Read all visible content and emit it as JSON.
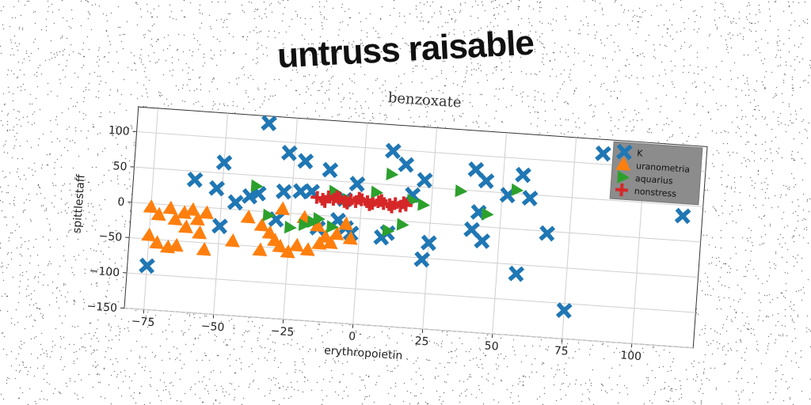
{
  "headline": "untruss raisable",
  "chart_data": {
    "type": "scatter",
    "title": "benzoxate",
    "xlabel": "erythropoietin",
    "ylabel": "spittlestaff",
    "xlim": [
      -82,
      122
    ],
    "ylim": [
      -150,
      135
    ],
    "xticks": [
      -75,
      -50,
      -25,
      0,
      25,
      50,
      75,
      100
    ],
    "yticks": [
      -150,
      -100,
      -50,
      0,
      50,
      100
    ],
    "grid": true,
    "legend_position": "top-right",
    "series": [
      {
        "name": "K",
        "marker": "X",
        "color": "#1f77b4",
        "points": [
          [
            -35,
            125
          ],
          [
            -27,
            85
          ],
          [
            -21,
            75
          ],
          [
            -50,
            65
          ],
          [
            -60,
            38
          ],
          [
            -52,
            28
          ],
          [
            -45,
            10
          ],
          [
            -40,
            20
          ],
          [
            -37,
            25
          ],
          [
            -28,
            30
          ],
          [
            -22,
            32
          ],
          [
            -18,
            33
          ],
          [
            -12,
            65
          ],
          [
            -6,
            25
          ],
          [
            -2,
            48
          ],
          [
            10,
            98
          ],
          [
            15,
            80
          ],
          [
            18,
            38
          ],
          [
            22,
            60
          ],
          [
            40,
            80
          ],
          [
            44,
            65
          ],
          [
            52,
            47
          ],
          [
            57,
            77
          ],
          [
            60,
            45
          ],
          [
            42,
            20
          ],
          [
            40,
            -5
          ],
          [
            44,
            -20
          ],
          [
            67,
            -3
          ],
          [
            115,
            35
          ],
          [
            85,
            115
          ],
          [
            -8,
            -5
          ],
          [
            -5,
            -15
          ],
          [
            -3,
            -22
          ],
          [
            8,
            -25
          ],
          [
            10,
            -18
          ],
          [
            25,
            -28
          ],
          [
            23,
            -52
          ],
          [
            57,
            -63
          ],
          [
            75,
            -110
          ],
          [
            -75,
            -88
          ],
          [
            -50,
            -25
          ],
          [
            -30,
            -10
          ],
          [
            -15,
            -18
          ]
        ]
      },
      {
        "name": "uranometria",
        "marker": "triangle-up",
        "color": "#ff7f0e",
        "points": [
          [
            -75,
            -5
          ],
          [
            -72,
            -15
          ],
          [
            -68,
            -5
          ],
          [
            -66,
            -20
          ],
          [
            -63,
            -10
          ],
          [
            -60,
            -5
          ],
          [
            -58,
            -18
          ],
          [
            -55,
            -8
          ],
          [
            -62,
            -30
          ],
          [
            -57,
            -37
          ],
          [
            -75,
            -45
          ],
          [
            -72,
            -55
          ],
          [
            -68,
            -60
          ],
          [
            -65,
            -57
          ],
          [
            -55,
            -60
          ],
          [
            -45,
            -45
          ],
          [
            -40,
            -10
          ],
          [
            -35,
            -20
          ],
          [
            -32,
            -30
          ],
          [
            -30,
            -40
          ],
          [
            -28,
            -48
          ],
          [
            -35,
            -55
          ],
          [
            -25,
            -55
          ],
          [
            -22,
            -45
          ],
          [
            -18,
            -50
          ],
          [
            -14,
            -40
          ],
          [
            -12,
            -30
          ],
          [
            -10,
            -38
          ],
          [
            -8,
            -25
          ],
          [
            -5,
            -10
          ],
          [
            -3,
            -30
          ],
          [
            -28,
            5
          ],
          [
            -20,
            -5
          ],
          [
            -15,
            -15
          ]
        ]
      },
      {
        "name": "aquarius",
        "marker": "triangle-right",
        "color": "#2ca02c",
        "points": [
          [
            -38,
            35
          ],
          [
            -33,
            -5
          ],
          [
            -25,
            -20
          ],
          [
            -20,
            -15
          ],
          [
            -15,
            -5
          ],
          [
            -10,
            -15
          ],
          [
            -5,
            25
          ],
          [
            5,
            38
          ],
          [
            10,
            65
          ],
          [
            18,
            30
          ],
          [
            22,
            25
          ],
          [
            35,
            48
          ],
          [
            45,
            18
          ],
          [
            55,
            55
          ],
          [
            10,
            -15
          ],
          [
            15,
            -5
          ],
          [
            -10,
            35
          ],
          [
            -17,
            -10
          ]
        ]
      },
      {
        "name": "nonstress",
        "marker": "plus",
        "color": "#d62728",
        "points": [
          [
            -16,
            25
          ],
          [
            -14,
            23
          ],
          [
            -12,
            27
          ],
          [
            -10,
            24
          ],
          [
            -8,
            26
          ],
          [
            -6,
            22
          ],
          [
            -4,
            25
          ],
          [
            -2,
            23
          ],
          [
            0,
            26
          ],
          [
            2,
            24
          ],
          [
            4,
            22
          ],
          [
            6,
            25
          ],
          [
            8,
            23
          ],
          [
            10,
            22
          ],
          [
            12,
            24
          ],
          [
            14,
            21
          ],
          [
            16,
            23
          ],
          [
            -13,
            20
          ],
          [
            -9,
            28
          ],
          [
            -5,
            20
          ],
          [
            -1,
            28
          ],
          [
            3,
            20
          ],
          [
            7,
            27
          ],
          [
            11,
            19
          ],
          [
            15,
            26
          ]
        ]
      }
    ]
  },
  "colors": {
    "plot_bg": "#ffffff",
    "grid": "#cfcfcf",
    "legend_bg": "#8c8c8c"
  }
}
